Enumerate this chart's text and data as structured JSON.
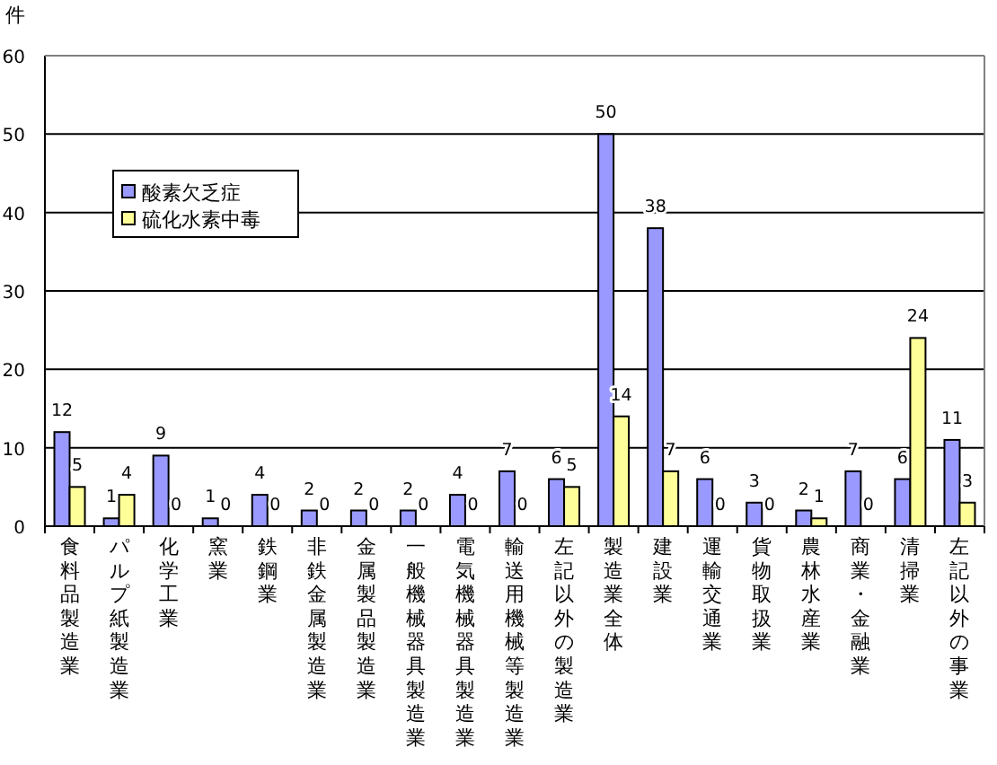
{
  "chart_data": {
    "type": "bar",
    "ylabel": "件",
    "categories": [
      "食料品製造業",
      "パルプ紙製造業",
      "化学工業",
      "窯業",
      "鉄鋼業",
      "非鉄金属製造業",
      "金属製品製造業",
      "一般機械器具製造業",
      "電気機械器具製造業",
      "輸送用機械等製造業",
      "左記以外の製造業",
      "製造業全体",
      "建設業",
      "運輸交通業",
      "貨物取扱業",
      "農林水産業",
      "商業・金融業",
      "清掃業",
      "左記以外の事業"
    ],
    "series": [
      {
        "name": "酸素欠乏症",
        "color": "#9999ff",
        "values": [
          12,
          1,
          9,
          1,
          4,
          2,
          2,
          2,
          4,
          7,
          6,
          50,
          38,
          6,
          3,
          2,
          7,
          6,
          11
        ]
      },
      {
        "name": "硫化水素中毒",
        "color": "#ffff99",
        "values": [
          5,
          4,
          0,
          0,
          0,
          0,
          0,
          0,
          0,
          0,
          5,
          14,
          7,
          0,
          0,
          1,
          0,
          24,
          3
        ]
      }
    ],
    "ylim": [
      0,
      60
    ],
    "yticks": [
      0,
      10,
      20,
      30,
      40,
      50,
      60
    ],
    "grid": "y",
    "legend": "top left",
    "data_labels": true
  }
}
